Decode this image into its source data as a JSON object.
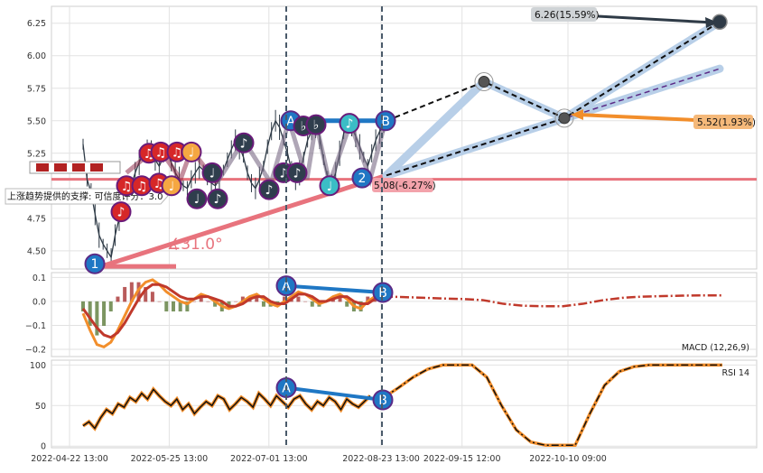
{
  "chart_data": [
    {
      "type": "line",
      "panel": "price",
      "ylim": [
        4.36,
        6.38
      ],
      "yticks": [
        "6.25",
        "6.00",
        "5.75",
        "5.50",
        "5.25",
        "4.75",
        "4.50"
      ],
      "ytick_values": [
        6.25,
        6.0,
        5.75,
        5.5,
        5.25,
        4.75,
        4.5
      ],
      "grid": true,
      "horizontal_line": 5.05,
      "series": [
        {
          "values": [
            5.32,
            5.05,
            4.95,
            4.78,
            4.62,
            4.55,
            4.5,
            4.45,
            4.62,
            4.75,
            4.85,
            4.95,
            5.0,
            5.1,
            5.18,
            5.25,
            5.3,
            5.28,
            5.2,
            5.15,
            5.22,
            5.26,
            5.18,
            5.1,
            5.05,
            5.0,
            4.98,
            5.05,
            5.1,
            5.15,
            5.12,
            5.06,
            5.02,
            5.0,
            5.05,
            5.12,
            5.2,
            5.28,
            5.35,
            5.3,
            5.22,
            5.1,
            5.02,
            4.98,
            5.05,
            5.15,
            5.3,
            5.42,
            5.5,
            5.45,
            5.35,
            5.25,
            5.12,
            5.05,
            5.1,
            5.22,
            5.35,
            5.42,
            5.45,
            5.38,
            5.2,
            5.06,
            5.02,
            5.1,
            5.25,
            5.4,
            5.48,
            5.45,
            5.38,
            5.3,
            5.22,
            5.15,
            5.25,
            5.35,
            5.42,
            5.45
          ]
        }
      ],
      "pattern_labels": [
        "1",
        "2",
        "A",
        "B",
        "A",
        "B",
        "A",
        "B"
      ],
      "annotations": [
        {
          "text": "6.26(15.59%)",
          "value": 6.26
        },
        {
          "text": "5.52(1.93%)",
          "value": 5.52
        },
        {
          "text": "5.08(-6.27%)",
          "value": 5.08
        },
        {
          "text": "∡31.0°"
        },
        {
          "text": "上涨趋势提供的支撑: 可信度评分：3.0"
        }
      ]
    },
    {
      "type": "line",
      "panel": "macd",
      "legend": "MACD (12,26,9)",
      "ylim": [
        -0.23,
        0.12
      ],
      "yticks": [
        "0.1",
        "0.0",
        "−0.1",
        "−0.2"
      ],
      "ytick_values": [
        0.1,
        0.0,
        -0.1,
        -0.2
      ],
      "series": [
        {
          "values": [
            -0.05,
            -0.12,
            -0.18,
            -0.19,
            -0.17,
            -0.12,
            -0.06,
            0.0,
            0.05,
            0.08,
            0.09,
            0.07,
            0.04,
            0.02,
            0.0,
            -0.01,
            0.01,
            0.03,
            0.02,
            0.0,
            -0.02,
            -0.03,
            -0.02,
            0.0,
            0.02,
            0.03,
            0.01,
            -0.01,
            -0.02,
            0.0,
            0.02,
            0.04,
            0.03,
            0.01,
            -0.01,
            0.0,
            0.02,
            0.03,
            0.01,
            -0.02,
            -0.03,
            0.0,
            0.02
          ]
        },
        {
          "values": [
            -0.03,
            -0.07,
            -0.11,
            -0.14,
            -0.15,
            -0.13,
            -0.09,
            -0.04,
            0.01,
            0.05,
            0.07,
            0.07,
            0.06,
            0.04,
            0.02,
            0.01,
            0.01,
            0.02,
            0.02,
            0.01,
            0.0,
            -0.02,
            -0.02,
            -0.01,
            0.01,
            0.02,
            0.02,
            0.0,
            -0.01,
            -0.01,
            0.01,
            0.03,
            0.03,
            0.02,
            0.0,
            0.0,
            0.01,
            0.02,
            0.02,
            0.0,
            -0.01,
            -0.01,
            0.01
          ]
        }
      ],
      "forecast": [
        0.02,
        0.018,
        0.015,
        0.012,
        0.01,
        0.005,
        -0.01,
        -0.018,
        -0.02,
        -0.02,
        -0.01,
        0.005,
        0.015,
        0.02,
        0.022,
        0.024,
        0.025,
        0.025
      ]
    },
    {
      "type": "line",
      "panel": "rsi",
      "legend": "RSI 14",
      "ylim": [
        -2,
        106
      ],
      "yticks": [
        "100",
        "50",
        "0"
      ],
      "ytick_values": [
        100,
        50,
        0
      ],
      "series": [
        {
          "values": [
            25,
            30,
            22,
            35,
            45,
            40,
            52,
            48,
            60,
            55,
            65,
            58,
            70,
            62,
            55,
            50,
            58,
            45,
            52,
            40,
            48,
            55,
            50,
            62,
            58,
            45,
            52,
            60,
            55,
            48,
            65,
            58,
            50,
            62,
            55,
            48,
            58,
            62,
            52,
            45,
            55,
            50,
            60,
            55,
            45,
            58,
            52,
            48,
            55,
            62
          ]
        }
      ],
      "forecast": [
        60,
        72,
        85,
        95,
        100,
        100,
        100,
        85,
        50,
        20,
        5,
        1,
        1,
        1,
        40,
        75,
        92,
        98,
        100,
        100,
        100,
        100,
        100,
        100
      ]
    }
  ],
  "xaxis": {
    "labels": [
      "2022-04-22 13:00",
      "2022-05-25 13:00",
      "2022-07-01 13:00",
      "2022-08-23 13:00",
      "2022-09-15 12:00",
      "2022-10-10 09:00"
    ],
    "positions": [
      0.0,
      0.16,
      0.32,
      0.5,
      0.63,
      0.8
    ]
  },
  "colors": {
    "price_line": "#2e3a46",
    "pink": "#e8737d",
    "blue_band": "#b8cfe8",
    "dark_dash": "#111111",
    "purple_dash": "#5b2a86",
    "orange": "#f28e2b",
    "macd_red": "#c0392b",
    "marker_blue": "#1f77c4",
    "marker_red": "#d62728",
    "marker_dark": "#2f3e4d",
    "marker_orange": "#f5a742",
    "marker_teal": "#3bbdc6",
    "grid": "#e2e2e2"
  }
}
